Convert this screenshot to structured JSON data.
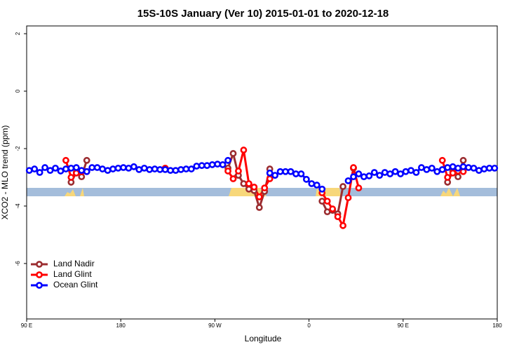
{
  "chart_data": {
    "type": "line",
    "title": "15S-10S January (Ver 10)   2015-01-01 to 2020-12-18",
    "x_label": "Longitude",
    "y_label": "XCO2 - MLO trend (ppm)",
    "xlim": [
      90,
      540
    ],
    "ylim": [
      -7.93,
      2.27
    ],
    "xticks": [
      {
        "value": 90,
        "label": "90 E"
      },
      {
        "value": 180,
        "label": "180"
      },
      {
        "value": 270,
        "label": "90 W"
      },
      {
        "value": 360,
        "label": "0"
      },
      {
        "value": 450,
        "label": "90 E"
      },
      {
        "value": 540,
        "label": "180"
      }
    ],
    "yticks": [
      2,
      0,
      -2,
      -4,
      -6
    ],
    "legend": "bottom-left",
    "x": [
      92.5,
      97.5,
      102.5,
      107.5,
      112.5,
      117.5,
      122.5,
      127.5,
      132.5,
      137.5,
      142.5,
      147.5,
      152.5,
      157.5,
      162.5,
      167.5,
      172.5,
      177.5,
      182.5,
      187.5,
      192.5,
      197.5,
      202.5,
      207.5,
      212.5,
      217.5,
      222.5,
      227.5,
      232.5,
      237.5,
      242.5,
      247.5,
      252.5,
      257.5,
      262.5,
      267.5,
      272.5,
      277.5,
      282.5,
      287.5,
      292.5,
      297.5,
      302.5,
      307.5,
      312.5,
      317.5,
      322.5,
      327.5,
      332.5,
      337.5,
      342.5,
      347.5,
      352.5,
      357.5,
      362.5,
      367.5,
      372.5,
      377.5,
      382.5,
      387.5,
      392.5,
      397.5,
      402.5,
      407.5,
      412.5,
      417.5,
      422.5,
      427.5,
      432.5,
      437.5,
      442.5,
      447.5,
      452.5,
      457.5,
      462.5,
      467.5,
      472.5,
      477.5,
      482.5,
      487.5,
      492.5,
      497.5,
      502.5,
      507.5,
      512.5,
      517.5,
      522.5,
      527.5,
      532.5,
      537.5
    ],
    "series": [
      {
        "name": "Land Nadir",
        "color": "#9b2d30",
        "values": [
          null,
          null,
          null,
          null,
          null,
          null,
          null,
          null,
          -3.17,
          -2.83,
          -2.98,
          -2.41,
          null,
          null,
          null,
          null,
          null,
          null,
          null,
          null,
          null,
          null,
          null,
          null,
          null,
          null,
          null,
          null,
          null,
          null,
          null,
          null,
          null,
          null,
          null,
          null,
          null,
          null,
          -2.68,
          -2.17,
          -2.93,
          -3.22,
          -3.41,
          -3.46,
          -4.05,
          -3.49,
          -2.71,
          null,
          null,
          null,
          null,
          null,
          null,
          null,
          null,
          null,
          -3.83,
          -4.2,
          -4.15,
          -4.27,
          -3.32,
          null,
          -2.68,
          null,
          null,
          null,
          null,
          null,
          null,
          null,
          null,
          null,
          null,
          null,
          null,
          null,
          null,
          null,
          null,
          null,
          -3.17,
          -2.8,
          -2.98,
          -2.41,
          null,
          null,
          null,
          null,
          null,
          null
        ]
      },
      {
        "name": "Land Glint",
        "color": "#ff0000",
        "values": [
          null,
          null,
          null,
          null,
          null,
          null,
          null,
          -2.41,
          -3.0,
          -2.85,
          -2.8,
          -2.8,
          null,
          null,
          null,
          null,
          null,
          null,
          null,
          null,
          null,
          null,
          null,
          null,
          null,
          null,
          -2.68,
          null,
          null,
          null,
          null,
          null,
          null,
          null,
          null,
          null,
          null,
          null,
          -2.78,
          -3.05,
          -2.78,
          -2.05,
          -3.22,
          -3.34,
          -3.68,
          -3.37,
          -3.05,
          null,
          null,
          null,
          null,
          null,
          null,
          null,
          null,
          null,
          -3.54,
          -3.83,
          -4.1,
          -4.37,
          -4.68,
          -3.71,
          -2.66,
          -3.37,
          null,
          null,
          null,
          null,
          null,
          null,
          null,
          null,
          null,
          null,
          null,
          null,
          null,
          null,
          null,
          -2.41,
          -3.0,
          -2.85,
          -2.78,
          -2.8,
          null,
          null,
          null,
          null,
          null,
          null
        ]
      },
      {
        "name": "Ocean Glint",
        "color": "#0000ff",
        "values": [
          -2.76,
          -2.71,
          -2.83,
          -2.66,
          -2.76,
          -2.68,
          -2.78,
          -2.71,
          -2.68,
          -2.66,
          -2.76,
          -2.8,
          -2.66,
          -2.66,
          -2.71,
          -2.76,
          -2.71,
          -2.68,
          -2.66,
          -2.68,
          -2.63,
          -2.73,
          -2.68,
          -2.73,
          -2.71,
          -2.73,
          -2.73,
          -2.76,
          -2.76,
          -2.73,
          -2.71,
          -2.71,
          -2.61,
          -2.59,
          -2.59,
          -2.56,
          -2.54,
          -2.56,
          -2.41,
          null,
          null,
          null,
          null,
          null,
          null,
          null,
          -2.85,
          -2.93,
          -2.8,
          -2.8,
          -2.8,
          -2.88,
          -2.88,
          -3.07,
          -3.22,
          -3.27,
          -3.41,
          null,
          null,
          null,
          null,
          -3.12,
          -2.98,
          -2.88,
          -2.98,
          -2.95,
          -2.83,
          -2.93,
          -2.83,
          -2.88,
          -2.8,
          -2.88,
          -2.8,
          -2.76,
          -2.83,
          -2.66,
          -2.73,
          -2.68,
          -2.8,
          -2.73,
          -2.66,
          -2.63,
          -2.68,
          -2.63,
          -2.66,
          -2.68,
          -2.76,
          -2.71,
          -2.68,
          -2.68
        ]
      }
    ]
  }
}
